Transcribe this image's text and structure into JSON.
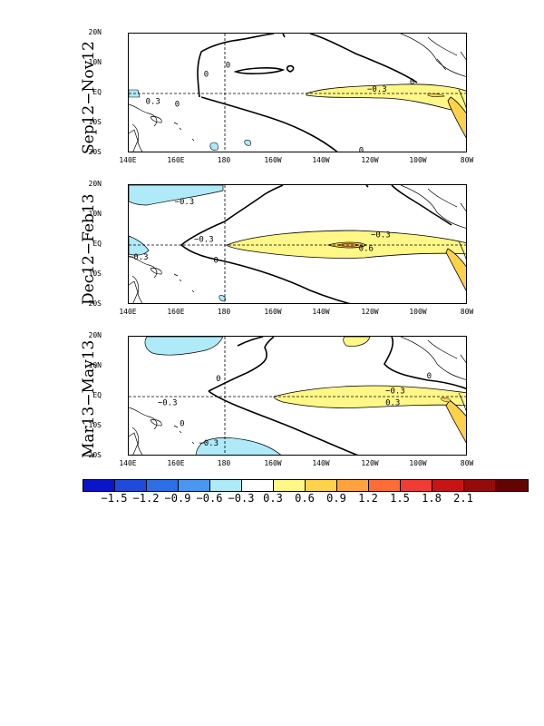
{
  "maps": [
    {
      "title": "Sep12−Nov12",
      "contour_labels": [
        {
          "text": "0",
          "lon": 181,
          "lat": 9.5
        },
        {
          "text": "0",
          "lon": 172,
          "lat": 6.5
        },
        {
          "text": "0",
          "lon": 160,
          "lat": -3.5
        },
        {
          "text": "0",
          "lon": 124,
          "lat": -19
        },
        {
          "text": "0",
          "lon": 103,
          "lat": 4
        },
        {
          "text": "−0.3",
          "lon": 117.5,
          "lat": 1.5
        },
        {
          "text": "0.3",
          "lon": 150,
          "lat": -2.5
        }
      ]
    },
    {
      "title": "Dec12−Feb13",
      "contour_labels": [
        {
          "text": "−0.3",
          "lon": 163,
          "lat": 14.5
        },
        {
          "text": "0",
          "lon": 176,
          "lat": -5
        },
        {
          "text": "−0.3",
          "lon": 171,
          "lat": 2
        },
        {
          "text": "−0.3",
          "lon": 116,
          "lat": 3.5
        },
        {
          "text": "0.6",
          "lon": 122,
          "lat": -1
        },
        {
          "text": "−0.3",
          "lon": 144,
          "lat": -4
        }
      ]
    },
    {
      "title": "Mar13−May13",
      "contour_labels": [
        {
          "text": "0",
          "lon": 177,
          "lat": 6
        },
        {
          "text": "0",
          "lon": 96,
          "lat": 7
        },
        {
          "text": "−0.3",
          "lon": 110,
          "lat": 2
        },
        {
          "text": "0.3",
          "lon": 111,
          "lat": -2
        },
        {
          "text": "0",
          "lon": 162,
          "lat": -9
        },
        {
          "text": "−0.3",
          "lon": 173,
          "lat": -15.5
        },
        {
          "text": "−0.3",
          "lon": 156,
          "lat": -2
        }
      ]
    }
  ],
  "x_ticks": [
    "140E",
    "160E",
    "180",
    "160W",
    "140W",
    "120W",
    "100W",
    "80W"
  ],
  "y_ticks": [
    "20N",
    "10N",
    "EQ",
    "10S",
    "20S"
  ],
  "colorbar": {
    "colors": [
      "#0a14c8",
      "#1e4bdc",
      "#2e6ee6",
      "#4a96f0",
      "#aeeaf8",
      "#ffffff",
      "#fff787",
      "#ffd24a",
      "#ffa43c",
      "#ff6c38",
      "#f03c34",
      "#c81414",
      "#960a0a",
      "#620404"
    ],
    "labels": [
      "−1.5",
      "−1.2",
      "−0.9",
      "−0.6",
      "−0.3",
      "0.3",
      "0.6",
      "0.9",
      "1.2",
      "1.5",
      "1.8",
      "2.1"
    ]
  }
}
